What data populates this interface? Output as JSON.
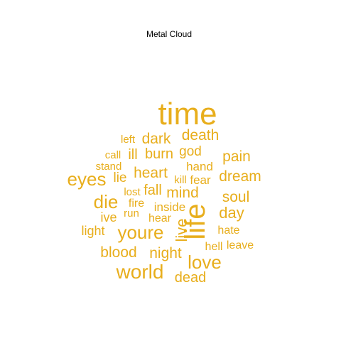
{
  "chart_data": {
    "type": "wordcloud",
    "title": "Metal Cloud",
    "color": "#E8AE1C",
    "words": [
      {
        "text": "time",
        "weight": 10
      },
      {
        "text": "life",
        "weight": 9
      },
      {
        "text": "world",
        "weight": 7
      },
      {
        "text": "youre",
        "weight": 7
      },
      {
        "text": "eyes",
        "weight": 7
      },
      {
        "text": "die",
        "weight": 7
      },
      {
        "text": "love",
        "weight": 7
      },
      {
        "text": "death",
        "weight": 5
      },
      {
        "text": "dark",
        "weight": 5
      },
      {
        "text": "pain",
        "weight": 5
      },
      {
        "text": "dream",
        "weight": 5
      },
      {
        "text": "soul",
        "weight": 5
      },
      {
        "text": "day",
        "weight": 5
      },
      {
        "text": "heart",
        "weight": 5
      },
      {
        "text": "mind",
        "weight": 5
      },
      {
        "text": "night",
        "weight": 5
      },
      {
        "text": "blood",
        "weight": 5
      },
      {
        "text": "live",
        "weight": 5
      },
      {
        "text": "burn",
        "weight": 4
      },
      {
        "text": "god",
        "weight": 4
      },
      {
        "text": "ill",
        "weight": 4
      },
      {
        "text": "dead",
        "weight": 4
      },
      {
        "text": "fall",
        "weight": 4
      },
      {
        "text": "hand",
        "weight": 3
      },
      {
        "text": "lie",
        "weight": 3
      },
      {
        "text": "fear",
        "weight": 3
      },
      {
        "text": "inside",
        "weight": 3
      },
      {
        "text": "ive",
        "weight": 3
      },
      {
        "text": "light",
        "weight": 3
      },
      {
        "text": "hate",
        "weight": 3
      },
      {
        "text": "hell",
        "weight": 3
      },
      {
        "text": "leave",
        "weight": 3
      },
      {
        "text": "fire",
        "weight": 3
      },
      {
        "text": "hear",
        "weight": 3
      },
      {
        "text": "run",
        "weight": 2
      },
      {
        "text": "left",
        "weight": 2
      },
      {
        "text": "call",
        "weight": 2
      },
      {
        "text": "stand",
        "weight": 2
      },
      {
        "text": "kill",
        "weight": 2
      },
      {
        "text": "lost",
        "weight": 2
      }
    ]
  }
}
